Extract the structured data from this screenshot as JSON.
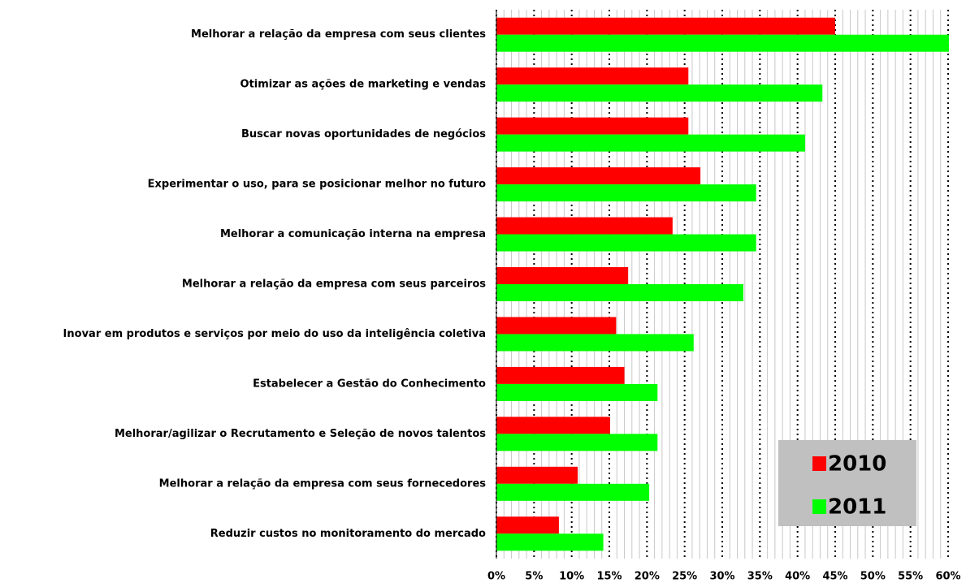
{
  "chart_data": {
    "type": "bar",
    "orientation": "horizontal",
    "categories": [
      "Melhorar a relação da empresa com seus clientes",
      "Otimizar as ações de marketing e vendas",
      "Buscar novas oportunidades de negócios",
      "Experimentar o uso, para se posicionar melhor no futuro",
      "Melhorar a comunicação interna na empresa",
      "Melhorar a relação da empresa com seus parceiros",
      "Inovar em produtos e serviços por meio do uso da inteligência coletiva",
      "Estabelecer a Gestão do Conhecimento",
      "Melhorar/agilizar o Recrutamento e Seleção de novos talentos",
      "Melhorar a relação da empresa com seus fornecedores",
      "Reduzir custos no monitoramento do mercado"
    ],
    "series": [
      {
        "name": "2010",
        "color": "#ff0000",
        "values": [
          45.0,
          25.5,
          25.5,
          27.1,
          23.4,
          17.5,
          15.9,
          17.0,
          15.1,
          10.8,
          8.3
        ]
      },
      {
        "name": "2011",
        "color": "#00ff00",
        "values": [
          60.1,
          43.3,
          41.0,
          34.5,
          34.5,
          32.8,
          26.2,
          21.4,
          21.4,
          20.3,
          14.2
        ]
      }
    ],
    "xlim": [
      0,
      60
    ],
    "xticks": [
      {
        "value": 0,
        "label": "0%"
      },
      {
        "value": 5,
        "label": "5%"
      },
      {
        "value": 10,
        "label": "10%"
      },
      {
        "value": 15,
        "label": "15%"
      },
      {
        "value": 20,
        "label": "20%"
      },
      {
        "value": 25,
        "label": "25%"
      },
      {
        "value": 30,
        "label": "30%"
      },
      {
        "value": 35,
        "label": "35%"
      },
      {
        "value": 40,
        "label": "40%"
      },
      {
        "value": 45,
        "label": "45%"
      },
      {
        "value": 50,
        "label": "50%"
      },
      {
        "value": 55,
        "label": "55%"
      },
      {
        "value": 60,
        "label": "60%"
      }
    ],
    "grid": true,
    "legend": "lower right"
  }
}
